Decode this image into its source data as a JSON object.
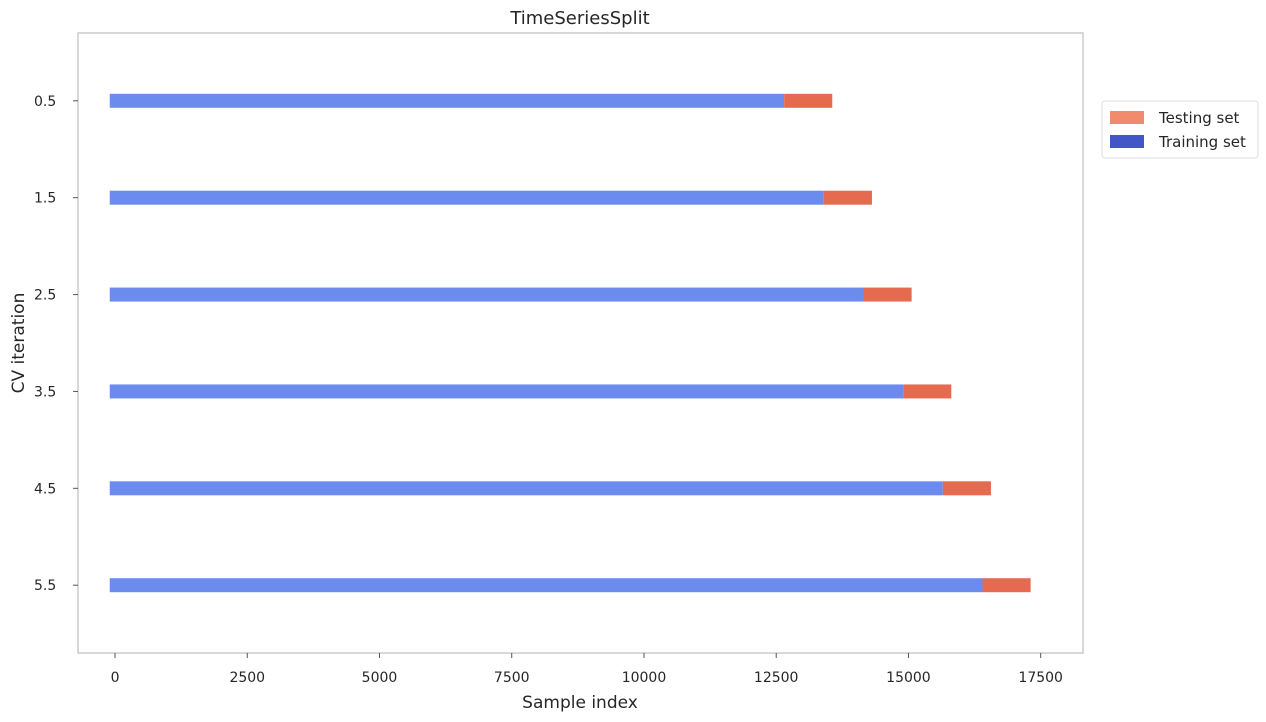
{
  "chart_data": {
    "type": "bar",
    "orientation": "horizontal",
    "stacked": true,
    "title": "TimeSeriesSplit",
    "xlabel": "Sample index",
    "ylabel": "CV iteration",
    "xlim": [
      -700,
      18300
    ],
    "ylim": [
      6.2,
      -0.2
    ],
    "xticks": [
      0,
      2500,
      5000,
      7500,
      10000,
      12500,
      15000,
      17500
    ],
    "yticks": [
      0.5,
      1.5,
      2.5,
      3.5,
      4.5,
      5.5
    ],
    "ytick_labels": [
      "0.5",
      "1.5",
      "2.5",
      "3.5",
      "4.5",
      "5.5"
    ],
    "grid": false,
    "legend": {
      "placement": "outside-right",
      "entries": [
        {
          "label": "Testing set",
          "color": "#f28b6e"
        },
        {
          "label": "Training set",
          "color": "#4157c8"
        }
      ]
    },
    "colors": {
      "training": "#6b8cee",
      "testing": "#e56a50"
    },
    "iterations": [
      {
        "y": 0.5,
        "train_start": -100,
        "train_end": 12650,
        "test_end": 13560
      },
      {
        "y": 1.5,
        "train_start": -100,
        "train_end": 13400,
        "test_end": 14310
      },
      {
        "y": 2.5,
        "train_start": -100,
        "train_end": 14150,
        "test_end": 15060
      },
      {
        "y": 3.5,
        "train_start": -100,
        "train_end": 14900,
        "test_end": 15810
      },
      {
        "y": 4.5,
        "train_start": -100,
        "train_end": 15650,
        "test_end": 16560
      },
      {
        "y": 5.5,
        "train_start": -100,
        "train_end": 16400,
        "test_end": 17310
      }
    ]
  }
}
